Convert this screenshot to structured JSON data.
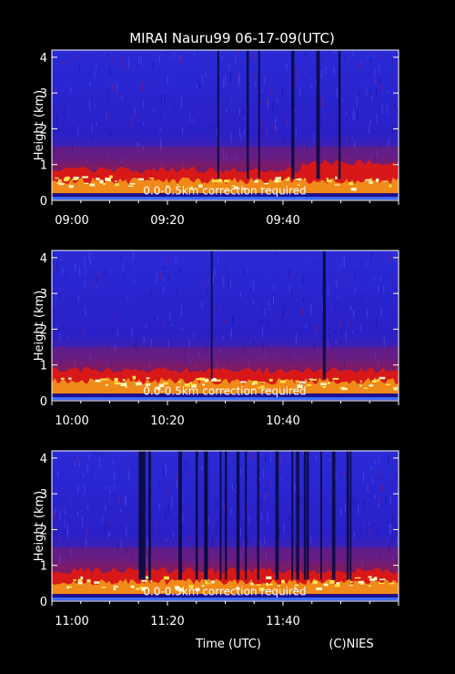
{
  "title": "MIRAI Nauru99 06-17-09(UTC)",
  "xlabel": "Time (UTC)",
  "credit": "(C)NIES",
  "chart_data": [
    {
      "type": "heatmap",
      "ylabel": "Height (km)",
      "ylim": [
        0,
        4.2
      ],
      "yticks": [
        "0",
        "1",
        "2",
        "3",
        "4"
      ],
      "xlim": [
        "09:00",
        "10:00"
      ],
      "xticks": [
        "09:00",
        "09:20",
        "09:40"
      ],
      "note": "0.0-0.5km correction required"
    },
    {
      "type": "heatmap",
      "ylabel": "Height (km)",
      "ylim": [
        0,
        4.2
      ],
      "yticks": [
        "0",
        "1",
        "2",
        "3",
        "4"
      ],
      "xlim": [
        "10:00",
        "11:00"
      ],
      "xticks": [
        "10:00",
        "10:20",
        "10:40"
      ],
      "note": "0.0-0.5km correction required"
    },
    {
      "type": "heatmap",
      "ylabel": "Height (km)",
      "ylim": [
        0,
        4.2
      ],
      "yticks": [
        "0",
        "1",
        "2",
        "3",
        "4"
      ],
      "xlim": [
        "11:00",
        "12:00"
      ],
      "xticks": [
        "11:00",
        "11:20",
        "11:40"
      ],
      "note": "0.0-0.5km correction required"
    }
  ]
}
